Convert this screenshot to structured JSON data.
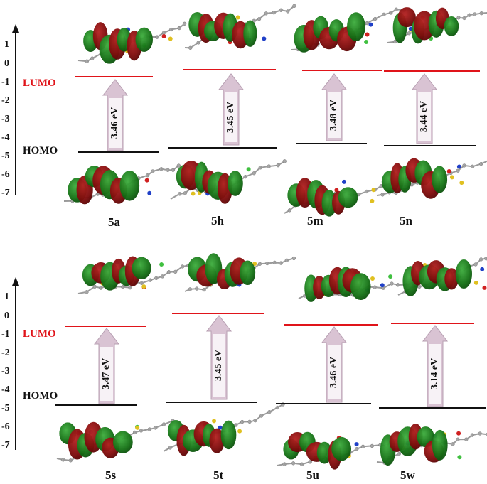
{
  "labels": {
    "lumo": "LUMO",
    "homo": "HOMO"
  },
  "axis_ticks": [
    "1",
    "0",
    "-1",
    "-2",
    "-3",
    "-4",
    "-5",
    "-6",
    "-7"
  ],
  "colors": {
    "lumo_line": "#e0141a",
    "homo_line": "#111111",
    "arrow_fill": "#d9c3d3",
    "arrow_stroke": "#b79fb2",
    "orbital_green": "#1a7a1a",
    "orbital_red": "#8c1010"
  },
  "compounds": [
    {
      "name": "5a",
      "gap": "3.46 eV"
    },
    {
      "name": "5h",
      "gap": "3.45 eV"
    },
    {
      "name": "5m",
      "gap": "3.48 eV"
    },
    {
      "name": "5n",
      "gap": "3.44 eV"
    },
    {
      "name": "5s",
      "gap": "3.47 eV"
    },
    {
      "name": "5t",
      "gap": "3.45 eV"
    },
    {
      "name": "5u",
      "gap": "3.46 eV"
    },
    {
      "name": "5w",
      "gap": "3.14 eV"
    }
  ]
}
